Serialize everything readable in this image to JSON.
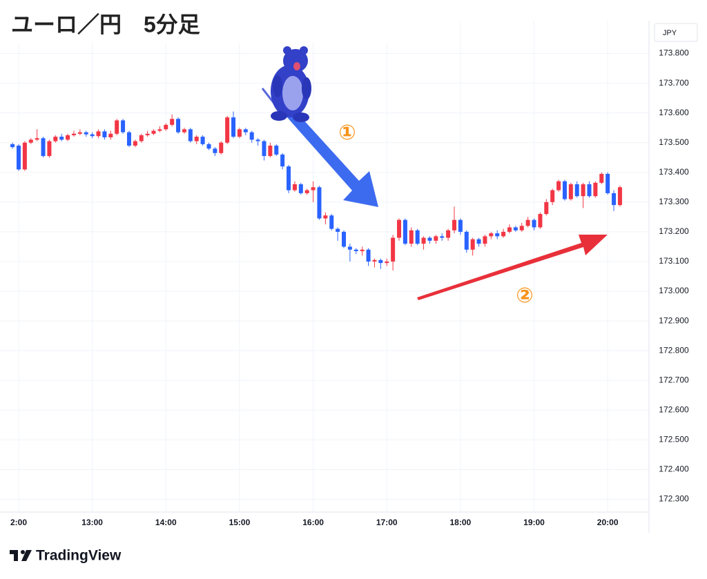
{
  "chart_data": {
    "type": "candlestick",
    "title": "ユーロ／円　5分足",
    "currency": "JPY",
    "brand": "TradingView",
    "annotations": [
      "①",
      "②"
    ],
    "up_color": "#f23645",
    "down_color": "#2962ff",
    "grid": true,
    "ylim": [
      172.25,
      173.85
    ],
    "yticks": [
      {
        "value": 172.3,
        "label": "172.300"
      },
      {
        "value": 172.4,
        "label": "172.400"
      },
      {
        "value": 172.5,
        "label": "172.500"
      },
      {
        "value": 172.6,
        "label": "172.600"
      },
      {
        "value": 172.7,
        "label": "172.700"
      },
      {
        "value": 172.8,
        "label": "172.800"
      },
      {
        "value": 172.9,
        "label": "172.900"
      },
      {
        "value": 173.0,
        "label": "173.000"
      },
      {
        "value": 173.1,
        "label": "173.100"
      },
      {
        "value": 173.2,
        "label": "173.200"
      },
      {
        "value": 173.3,
        "label": "173.300"
      },
      {
        "value": 173.4,
        "label": "173.400"
      },
      {
        "value": 173.5,
        "label": "173.500"
      },
      {
        "value": 173.6,
        "label": "173.600"
      },
      {
        "value": 173.7,
        "label": "173.700"
      },
      {
        "value": 173.8,
        "label": "173.800"
      }
    ],
    "categories": [
      null,
      "2:00",
      null,
      null,
      null,
      null,
      null,
      null,
      null,
      null,
      null,
      null,
      null,
      "13:00",
      null,
      null,
      null,
      null,
      null,
      null,
      null,
      null,
      null,
      null,
      null,
      "14:00",
      null,
      null,
      null,
      null,
      null,
      null,
      null,
      null,
      null,
      null,
      null,
      "15:00",
      null,
      null,
      null,
      null,
      null,
      null,
      null,
      null,
      null,
      null,
      null,
      "16:00",
      null,
      null,
      null,
      null,
      null,
      null,
      null,
      null,
      null,
      null,
      null,
      "17:00",
      null,
      null,
      null,
      null,
      null,
      null,
      null,
      null,
      null,
      null,
      null,
      "18:00",
      null,
      null,
      null,
      null,
      null,
      null,
      null,
      null,
      null,
      null,
      null,
      "19:00",
      null,
      null,
      null,
      null,
      null,
      null,
      null,
      null,
      null,
      null,
      null,
      "20:00",
      null,
      null
    ],
    "candles": [
      [
        173.495,
        173.5,
        173.48,
        173.485
      ],
      [
        173.49,
        173.495,
        173.405,
        173.41
      ],
      [
        173.41,
        173.505,
        173.405,
        173.5
      ],
      [
        173.5,
        173.515,
        173.495,
        173.51
      ],
      [
        173.51,
        173.545,
        173.505,
        173.515
      ],
      [
        173.515,
        173.52,
        173.45,
        173.455
      ],
      [
        173.455,
        173.51,
        173.45,
        173.505
      ],
      [
        173.505,
        173.525,
        173.5,
        173.52
      ],
      [
        173.52,
        173.53,
        173.505,
        173.51
      ],
      [
        173.51,
        173.53,
        173.505,
        173.525
      ],
      [
        173.525,
        173.54,
        173.52,
        173.53
      ],
      [
        173.53,
        173.545,
        173.525,
        173.535
      ],
      [
        173.535,
        173.54,
        173.52,
        173.528
      ],
      [
        173.528,
        173.535,
        173.515,
        173.522
      ],
      [
        173.522,
        173.545,
        173.515,
        173.538
      ],
      [
        173.538,
        173.545,
        173.51,
        173.518
      ],
      [
        173.518,
        173.54,
        173.51,
        173.53
      ],
      [
        173.53,
        173.58,
        173.525,
        173.575
      ],
      [
        173.575,
        173.58,
        173.53,
        173.535
      ],
      [
        173.535,
        173.54,
        173.485,
        173.49
      ],
      [
        173.49,
        173.51,
        173.485,
        173.505
      ],
      [
        173.505,
        173.53,
        173.5,
        173.525
      ],
      [
        173.525,
        173.54,
        173.52,
        173.53
      ],
      [
        173.53,
        173.545,
        173.525,
        173.54
      ],
      [
        173.54,
        173.555,
        173.535,
        173.545
      ],
      [
        173.545,
        173.565,
        173.54,
        173.56
      ],
      [
        173.56,
        173.595,
        173.555,
        173.58
      ],
      [
        173.58,
        173.585,
        173.53,
        173.535
      ],
      [
        173.535,
        173.55,
        173.53,
        173.545
      ],
      [
        173.545,
        173.55,
        173.5,
        173.505
      ],
      [
        173.505,
        173.525,
        173.495,
        173.52
      ],
      [
        173.52,
        173.525,
        173.49,
        173.495
      ],
      [
        173.495,
        173.5,
        173.475,
        173.48
      ],
      [
        173.48,
        173.485,
        173.455,
        173.465
      ],
      [
        173.465,
        173.505,
        173.46,
        173.5
      ],
      [
        173.5,
        173.59,
        173.495,
        173.585
      ],
      [
        173.585,
        173.605,
        173.515,
        173.52
      ],
      [
        173.52,
        173.55,
        173.515,
        173.545
      ],
      [
        173.545,
        173.55,
        173.525,
        173.535
      ],
      [
        173.535,
        173.54,
        173.5,
        173.51
      ],
      [
        173.51,
        173.515,
        173.49,
        173.505
      ],
      [
        173.505,
        173.51,
        173.44,
        173.455
      ],
      [
        173.455,
        173.5,
        173.45,
        173.49
      ],
      [
        173.49,
        173.495,
        173.455,
        173.46
      ],
      [
        173.46,
        173.465,
        173.41,
        173.42
      ],
      [
        173.42,
        173.425,
        173.33,
        173.34
      ],
      [
        173.34,
        173.37,
        173.335,
        173.36
      ],
      [
        173.36,
        173.365,
        173.325,
        173.33
      ],
      [
        173.33,
        173.345,
        173.325,
        173.34
      ],
      [
        173.34,
        173.37,
        173.3,
        173.35
      ],
      [
        173.35,
        173.355,
        173.24,
        173.245
      ],
      [
        173.245,
        173.265,
        173.225,
        173.255
      ],
      [
        173.255,
        173.26,
        173.205,
        173.21
      ],
      [
        173.21,
        173.215,
        173.17,
        173.2
      ],
      [
        173.2,
        173.205,
        173.145,
        173.15
      ],
      [
        173.15,
        173.16,
        173.1,
        173.14
      ],
      [
        173.14,
        173.145,
        173.125,
        173.135
      ],
      [
        173.135,
        173.15,
        173.12,
        173.14
      ],
      [
        173.14,
        173.145,
        173.085,
        173.1
      ],
      [
        173.1,
        173.11,
        173.08,
        173.105
      ],
      [
        173.105,
        173.11,
        173.075,
        173.095
      ],
      [
        173.095,
        173.11,
        173.085,
        173.1
      ],
      [
        173.1,
        173.19,
        173.07,
        173.18
      ],
      [
        173.18,
        173.245,
        173.17,
        173.24
      ],
      [
        173.24,
        173.245,
        173.155,
        173.16
      ],
      [
        173.16,
        173.215,
        173.15,
        173.205
      ],
      [
        173.205,
        173.21,
        173.155,
        173.16
      ],
      [
        173.16,
        173.185,
        173.14,
        173.18
      ],
      [
        173.18,
        173.185,
        173.16,
        173.17
      ],
      [
        173.17,
        173.19,
        173.16,
        173.185
      ],
      [
        173.185,
        173.195,
        173.17,
        173.18
      ],
      [
        173.18,
        173.21,
        173.17,
        173.205
      ],
      [
        173.205,
        173.285,
        173.195,
        173.24
      ],
      [
        173.24,
        173.245,
        173.19,
        173.2
      ],
      [
        173.2,
        173.205,
        173.13,
        173.14
      ],
      [
        173.14,
        173.18,
        173.12,
        173.175
      ],
      [
        173.175,
        173.18,
        173.15,
        173.16
      ],
      [
        173.16,
        173.19,
        173.15,
        173.185
      ],
      [
        173.185,
        173.2,
        173.175,
        173.195
      ],
      [
        173.195,
        173.205,
        173.175,
        173.185
      ],
      [
        173.185,
        173.21,
        173.18,
        173.2
      ],
      [
        173.2,
        173.225,
        173.195,
        173.215
      ],
      [
        173.215,
        173.22,
        173.2,
        173.205
      ],
      [
        173.205,
        173.23,
        173.2,
        173.22
      ],
      [
        173.22,
        173.25,
        173.215,
        173.24
      ],
      [
        173.24,
        173.245,
        173.205,
        173.215
      ],
      [
        173.215,
        173.265,
        173.21,
        173.26
      ],
      [
        173.26,
        173.31,
        173.255,
        173.3
      ],
      [
        173.3,
        173.345,
        173.29,
        173.34
      ],
      [
        173.34,
        173.375,
        173.335,
        173.37
      ],
      [
        173.37,
        173.375,
        173.305,
        173.31
      ],
      [
        173.31,
        173.365,
        173.305,
        173.36
      ],
      [
        173.36,
        173.37,
        173.315,
        173.32
      ],
      [
        173.32,
        173.365,
        173.28,
        173.36
      ],
      [
        173.36,
        173.37,
        173.315,
        173.32
      ],
      [
        173.32,
        173.37,
        173.315,
        173.365
      ],
      [
        173.365,
        173.4,
        173.36,
        173.395
      ],
      [
        173.395,
        173.4,
        173.325,
        173.33
      ],
      [
        173.33,
        173.34,
        173.27,
        173.29
      ],
      [
        173.29,
        173.355,
        173.285,
        173.35
      ]
    ]
  }
}
